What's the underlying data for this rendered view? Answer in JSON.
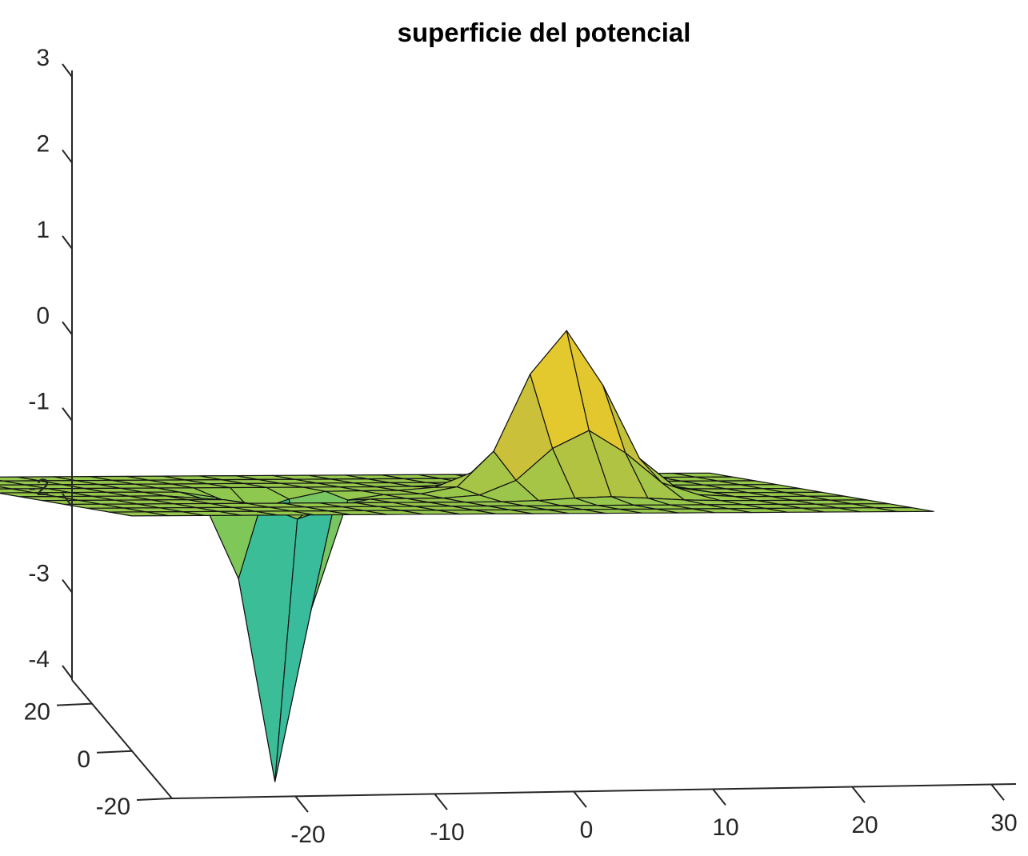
{
  "chart_data": {
    "type": "surface",
    "title": "superficie del potencial",
    "xlabel": "",
    "ylabel": "",
    "zlabel": "",
    "x_ticks": [
      -20,
      -10,
      0,
      10,
      20,
      30
    ],
    "x_tick_labels": [
      "-20",
      "-10",
      "0",
      "10",
      "20",
      "30"
    ],
    "y_ticks": [
      -20,
      0,
      20
    ],
    "y_tick_labels": [
      "-20",
      "0",
      "20"
    ],
    "z_ticks": [
      -4,
      -3,
      -2,
      -1,
      0,
      1,
      2,
      3
    ],
    "z_tick_labels": [
      "-4",
      "-3",
      "-2",
      "-1",
      "0",
      "1",
      "2",
      "3"
    ],
    "xlim": [
      -30,
      30
    ],
    "ylim": [
      -20,
      20
    ],
    "zlim": [
      -4,
      3
    ],
    "grid": false,
    "colormap": "parula",
    "colors": {
      "low": "#2f8fd8",
      "mid": "#33b8a8",
      "high": "#e8c229",
      "edge": "#111111",
      "axis": "#262626"
    },
    "features": [
      {
        "kind": "peak",
        "x": 10,
        "y": 0,
        "z": 1.35
      },
      {
        "kind": "well",
        "x": -10,
        "y": 0,
        "z": -3.9
      }
    ]
  }
}
